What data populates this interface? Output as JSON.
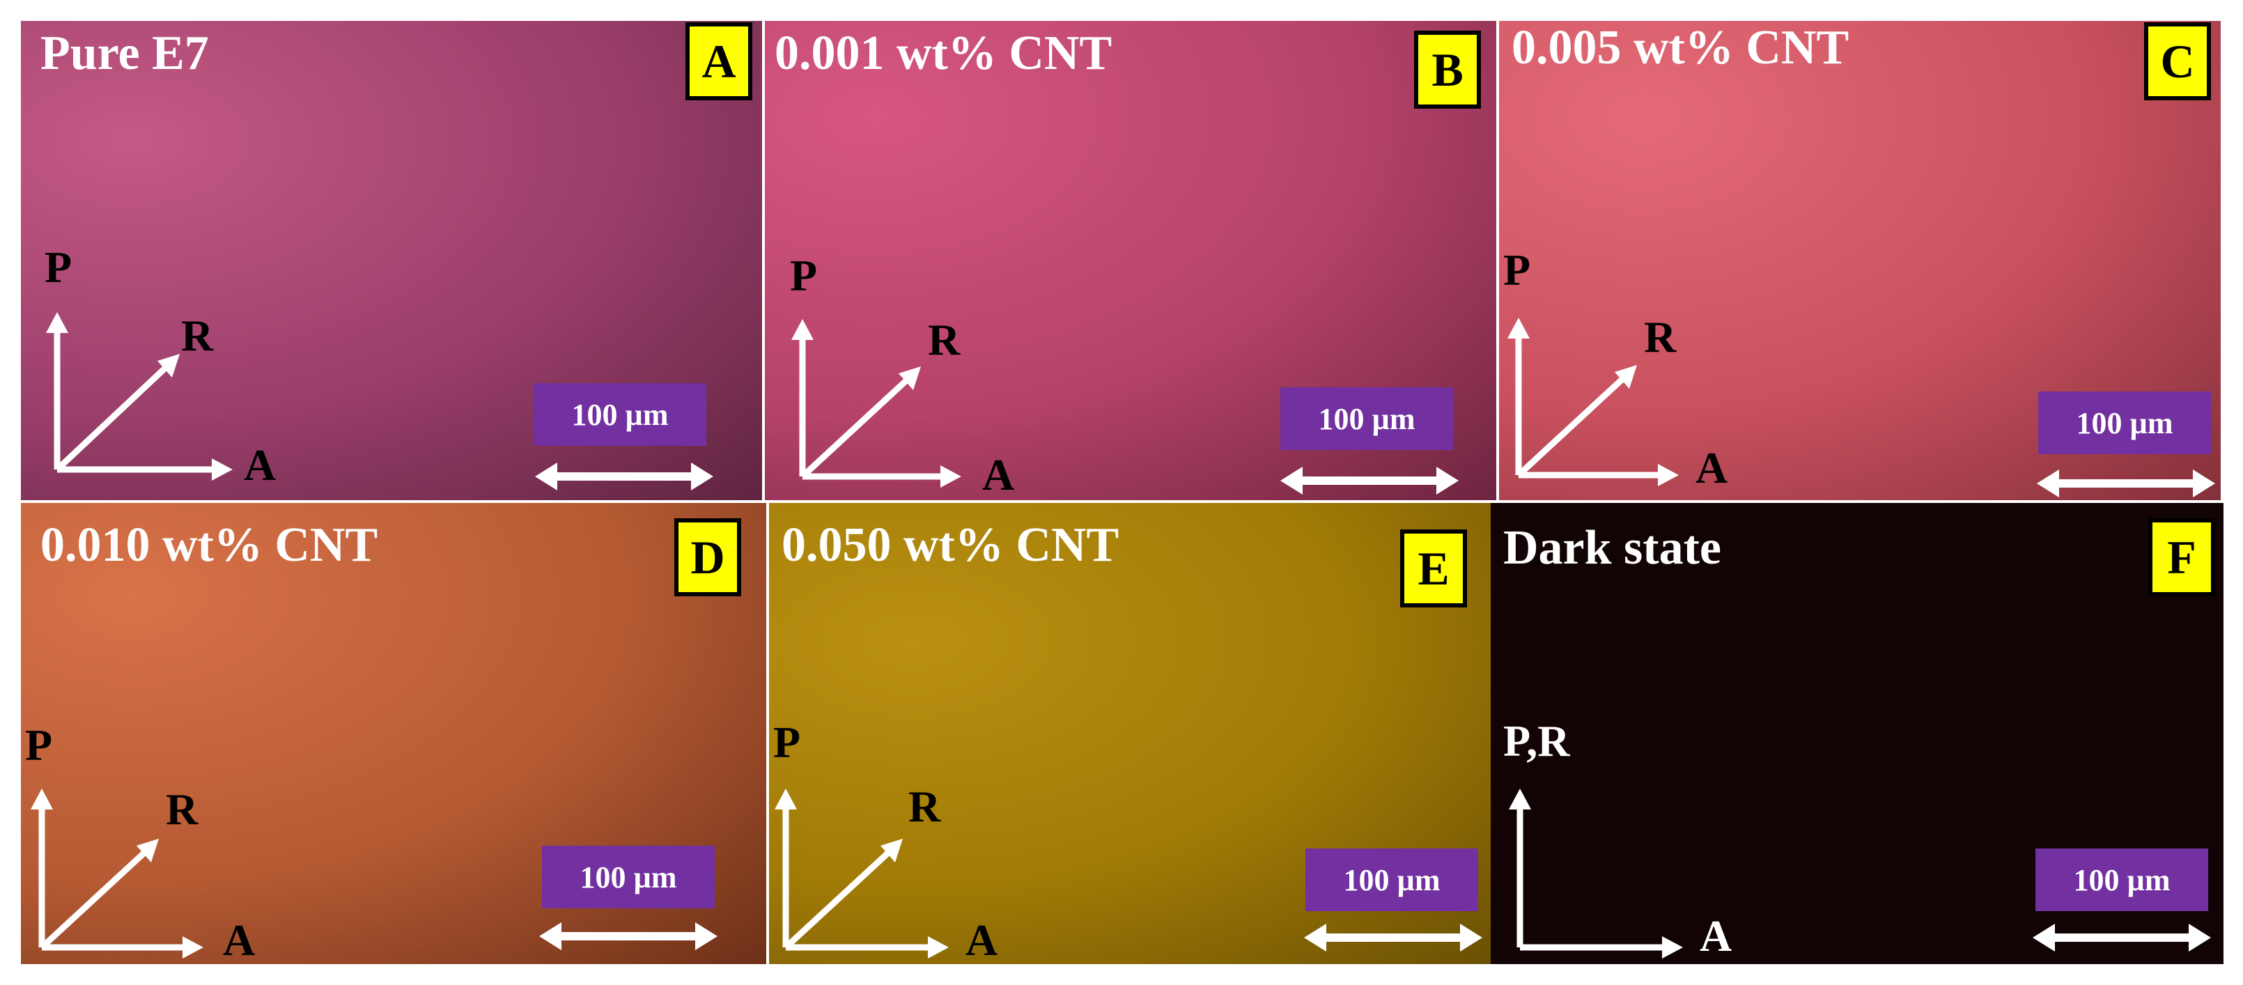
{
  "panels": [
    {
      "title": "Pure E7",
      "letter": "A",
      "axes": [
        "P",
        "R",
        "A"
      ],
      "scale": "100 µm",
      "colors": [
        "#c45984",
        "#9a3e6a",
        "#5f2440"
      ]
    },
    {
      "title": "0.001 wt% CNT",
      "letter": "B",
      "axes": [
        "P",
        "R",
        "A"
      ],
      "scale": "100 µm",
      "colors": [
        "#d6577f",
        "#b5426a",
        "#6e2440"
      ]
    },
    {
      "title": "0.005 wt% CNT",
      "letter": "C",
      "axes": [
        "P",
        "R",
        "A"
      ],
      "scale": "100 µm",
      "colors": [
        "#e36a76",
        "#c9505e",
        "#83303a"
      ]
    },
    {
      "title": "0.010 wt% CNT",
      "letter": "D",
      "axes": [
        "P",
        "R",
        "A"
      ],
      "scale": "100 µm",
      "colors": [
        "#d87249",
        "#b55a33",
        "#6d3018"
      ]
    },
    {
      "title": "0.050 wt% CNT",
      "letter": "E",
      "axes": [
        "P",
        "R",
        "A"
      ],
      "scale": "100 µm",
      "colors": [
        "#b99012",
        "#a07a06",
        "#6a5004"
      ]
    },
    {
      "title": "Dark state",
      "letter": "F",
      "axes": [
        "P,R",
        "A"
      ],
      "scale": "100 µm",
      "colors": [
        "#140305",
        "#110203",
        "#0e0202"
      ]
    }
  ]
}
